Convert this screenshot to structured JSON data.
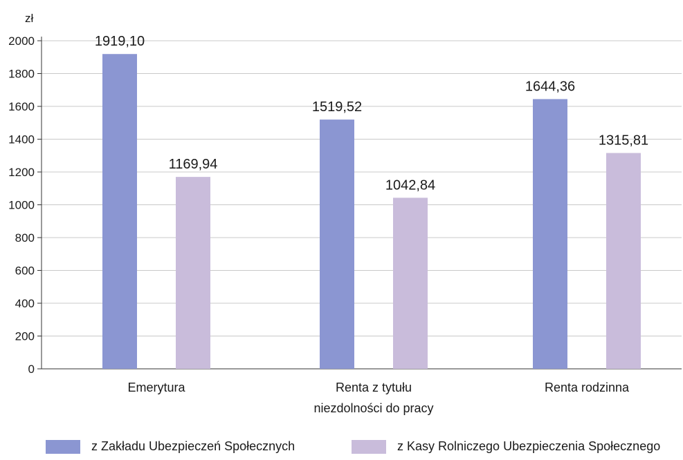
{
  "chart_data": {
    "type": "bar",
    "title": "",
    "xlabel": "",
    "ylabel": "zł",
    "ylim": [
      0,
      2000
    ],
    "yticks": [
      0,
      200,
      400,
      600,
      800,
      1000,
      1200,
      1400,
      1600,
      1800,
      2000
    ],
    "grid": true,
    "legend_position": "bottom",
    "categories": [
      [
        "Emerytura"
      ],
      [
        "Renta z tytułu",
        "niezdolności do pracy"
      ],
      [
        "Renta rodzinna"
      ]
    ],
    "series": [
      {
        "name": "z Zakładu Ubezpieczeń Społecznych",
        "color": "#8b96d2",
        "values": [
          1919.1,
          1519.52,
          1644.36
        ],
        "labels": [
          "1919,10",
          "1519,52",
          "1644,36"
        ]
      },
      {
        "name": "z Kasy Rolniczego Ubezpieczenia Społecznego",
        "color": "#c9bcdb",
        "values": [
          1169.94,
          1042.84,
          1315.81
        ],
        "labels": [
          "1169,94",
          "1042,84",
          "1315,81"
        ]
      }
    ]
  }
}
